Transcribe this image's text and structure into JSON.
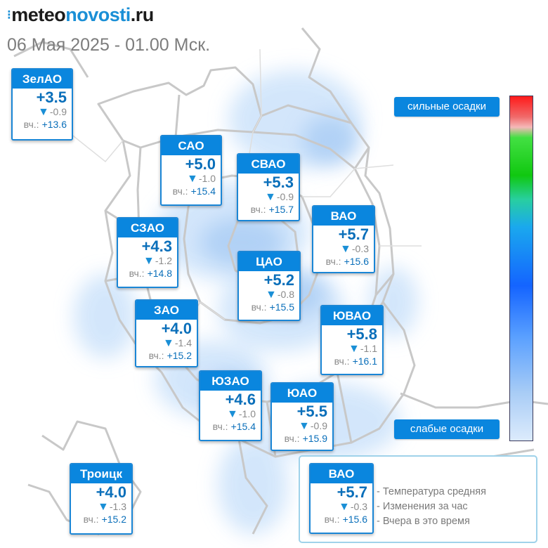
{
  "site": {
    "brand_prefix": "meteo",
    "brand_highlight": "novosti",
    "brand_suffix": ".ru"
  },
  "date_line": "06 Мая 2025 - 01.00 Мск.",
  "districts": [
    {
      "name": "ЗелАО",
      "temp": "+3.5",
      "change": "-0.9",
      "yesterday_label": "вч.:",
      "yesterday": "+13.6"
    },
    {
      "name": "САО",
      "temp": "+5.0",
      "change": "-1.0",
      "yesterday_label": "вч.:",
      "yesterday": "+15.4"
    },
    {
      "name": "СВАО",
      "temp": "+5.3",
      "change": "-0.9",
      "yesterday_label": "вч.:",
      "yesterday": "+15.7"
    },
    {
      "name": "ВАО",
      "temp": "+5.7",
      "change": "-0.3",
      "yesterday_label": "вч.:",
      "yesterday": "+15.6"
    },
    {
      "name": "СЗАО",
      "temp": "+4.3",
      "change": "-1.2",
      "yesterday_label": "вч.:",
      "yesterday": "+14.8"
    },
    {
      "name": "ЦАО",
      "temp": "+5.2",
      "change": "-0.8",
      "yesterday_label": "вч.:",
      "yesterday": "+15.5"
    },
    {
      "name": "ЗАО",
      "temp": "+4.0",
      "change": "-1.4",
      "yesterday_label": "вч.:",
      "yesterday": "+15.2"
    },
    {
      "name": "ЮВАО",
      "temp": "+5.8",
      "change": "-1.1",
      "yesterday_label": "вч.:",
      "yesterday": "+16.1"
    },
    {
      "name": "ЮЗАО",
      "temp": "+4.6",
      "change": "-1.0",
      "yesterday_label": "вч.:",
      "yesterday": "+15.4"
    },
    {
      "name": "ЮАО",
      "temp": "+5.5",
      "change": "-0.9",
      "yesterday_label": "вч.:",
      "yesterday": "+15.9"
    },
    {
      "name": "Троицк",
      "temp": "+4.0",
      "change": "-1.3",
      "yesterday_label": "вч.:",
      "yesterday": "+15.2"
    }
  ],
  "precip_scale": {
    "high_label": "сильные осадки",
    "low_label": "слабые осадки"
  },
  "legend": {
    "sample": {
      "name": "ВАО",
      "temp": "+5.7",
      "change": "-0.3",
      "yesterday_label": "вч.:",
      "yesterday": "+15.6"
    },
    "lines": [
      "- Температура средняя",
      "- Изменения за час",
      "- Вчера в это время"
    ]
  },
  "colors": {
    "accent": "#0a86de",
    "temp_text": "#0a6fba",
    "precip_light": "#b9d8f8",
    "map_lines": "#c9c9c9"
  }
}
